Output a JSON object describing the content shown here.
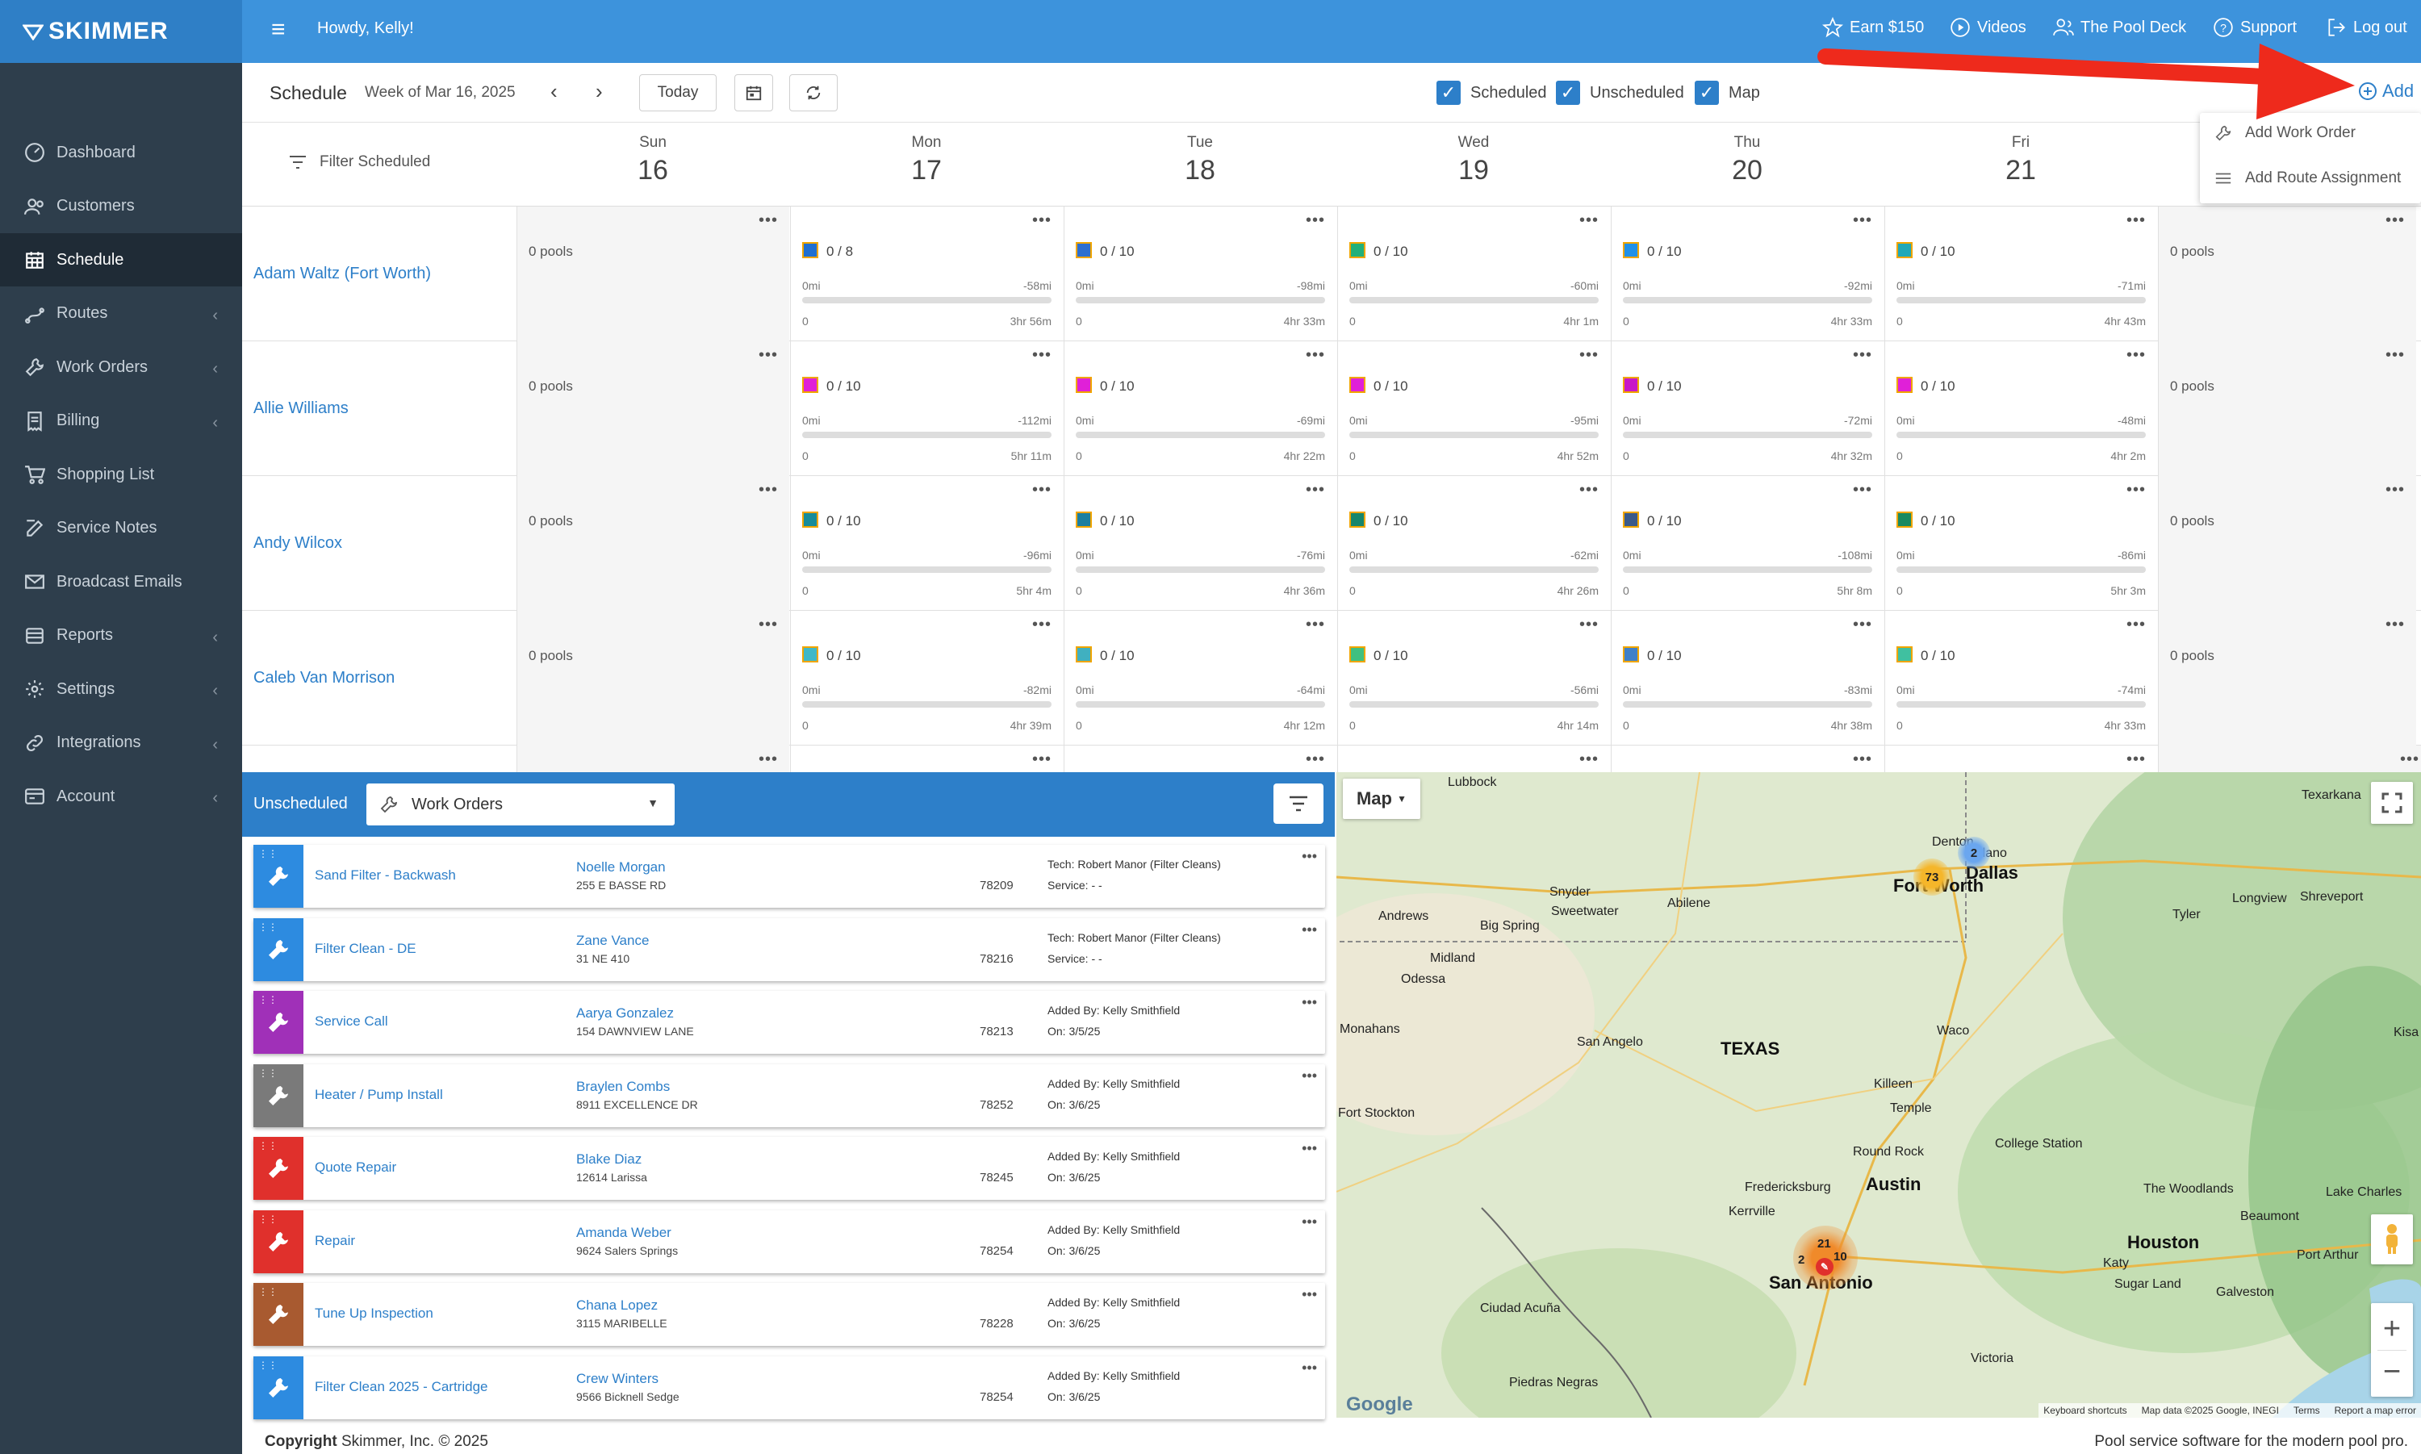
{
  "brand": {
    "name": "SKIMMER",
    "accent": "#3d93dc",
    "sidebar_bg": "#2e3e4c"
  },
  "topbar": {
    "greeting": "Howdy, Kelly!",
    "links": [
      {
        "label": "Earn $150",
        "icon": "star-icon"
      },
      {
        "label": "Videos",
        "icon": "play-icon"
      },
      {
        "label": "The Pool Deck",
        "icon": "people-icon"
      },
      {
        "label": "Support",
        "icon": "help-icon"
      },
      {
        "label": "Log out",
        "icon": "logout-icon"
      }
    ]
  },
  "sidebar": {
    "items": [
      {
        "label": "Dashboard",
        "icon": "dashboard-icon",
        "chevron": false
      },
      {
        "label": "Customers",
        "icon": "customers-icon",
        "chevron": false
      },
      {
        "label": "Schedule",
        "icon": "calendar-icon",
        "chevron": false,
        "active": true
      },
      {
        "label": "Routes",
        "icon": "routes-icon",
        "chevron": true
      },
      {
        "label": "Work Orders",
        "icon": "wrench-icon",
        "chevron": true
      },
      {
        "label": "Billing",
        "icon": "invoice-icon",
        "chevron": true
      },
      {
        "label": "Shopping List",
        "icon": "cart-icon",
        "chevron": false
      },
      {
        "label": "Service Notes",
        "icon": "notes-icon",
        "chevron": false
      },
      {
        "label": "Broadcast Emails",
        "icon": "email-icon",
        "chevron": false
      },
      {
        "label": "Reports",
        "icon": "reports-icon",
        "chevron": true
      },
      {
        "label": "Settings",
        "icon": "gear-icon",
        "chevron": true
      },
      {
        "label": "Integrations",
        "icon": "link-icon",
        "chevron": true
      },
      {
        "label": "Account",
        "icon": "account-icon",
        "chevron": true
      }
    ]
  },
  "schedule": {
    "title": "Schedule",
    "week": "Week of Mar 16, 2025",
    "today_label": "Today",
    "toggles": [
      {
        "label": "Scheduled",
        "checked": true
      },
      {
        "label": "Unscheduled",
        "checked": true
      },
      {
        "label": "Map",
        "checked": true
      }
    ],
    "add_label": "Add",
    "filter_label": "Filter Scheduled",
    "days": [
      {
        "name": "Sun",
        "date": "16"
      },
      {
        "name": "Mon",
        "date": "17"
      },
      {
        "name": "Tue",
        "date": "18"
      },
      {
        "name": "Wed",
        "date": "19"
      },
      {
        "name": "Thu",
        "date": "20"
      },
      {
        "name": "Fri",
        "date": "21"
      },
      {
        "name": "",
        "date": ""
      }
    ],
    "technicians": [
      {
        "name": "Adam Waltz (Fort Worth)",
        "sun": "0 pools",
        "sat": "0 pools",
        "days": [
          {
            "count": "0 / 8",
            "color": "#1f6fd1",
            "mi0": "0mi",
            "mi": "-58mi",
            "s": "0",
            "time": "3hr 56m"
          },
          {
            "count": "0 / 10",
            "color": "#2e6fd0",
            "mi0": "0mi",
            "mi": "-98mi",
            "s": "0",
            "time": "4hr 33m"
          },
          {
            "count": "0 / 10",
            "color": "#22b07a",
            "mi0": "0mi",
            "mi": "-60mi",
            "s": "0",
            "time": "4hr 1m"
          },
          {
            "count": "0 / 10",
            "color": "#2090e8",
            "mi0": "0mi",
            "mi": "-92mi",
            "s": "0",
            "time": "4hr 33m"
          },
          {
            "count": "0 / 10",
            "color": "#20a8b8",
            "mi0": "0mi",
            "mi": "-71mi",
            "s": "0",
            "time": "4hr 43m"
          }
        ]
      },
      {
        "name": "Allie Williams",
        "sun": "0 pools",
        "sat": "0 pools",
        "days": [
          {
            "count": "0 / 10",
            "color": "#e020d8",
            "mi0": "0mi",
            "mi": "-112mi",
            "s": "0",
            "time": "5hr 11m"
          },
          {
            "count": "0 / 10",
            "color": "#e020d8",
            "mi0": "0mi",
            "mi": "-69mi",
            "s": "0",
            "time": "4hr 22m"
          },
          {
            "count": "0 / 10",
            "color": "#e020d8",
            "mi0": "0mi",
            "mi": "-95mi",
            "s": "0",
            "time": "4hr 52m"
          },
          {
            "count": "0 / 10",
            "color": "#c818c8",
            "mi0": "0mi",
            "mi": "-72mi",
            "s": "0",
            "time": "4hr 32m"
          },
          {
            "count": "0 / 10",
            "color": "#e020d8",
            "mi0": "0mi",
            "mi": "-48mi",
            "s": "0",
            "time": "4hr 2m"
          }
        ]
      },
      {
        "name": "Andy Wilcox",
        "sun": "0 pools",
        "sat": "0 pools",
        "days": [
          {
            "count": "0 / 10",
            "color": "#168c9a",
            "mi0": "0mi",
            "mi": "-96mi",
            "s": "0",
            "time": "5hr 4m"
          },
          {
            "count": "0 / 10",
            "color": "#1c7fa0",
            "mi0": "0mi",
            "mi": "-76mi",
            "s": "0",
            "time": "4hr 36m"
          },
          {
            "count": "0 / 10",
            "color": "#17866c",
            "mi0": "0mi",
            "mi": "-62mi",
            "s": "0",
            "time": "4hr 26m"
          },
          {
            "count": "0 / 10",
            "color": "#3a5a8a",
            "mi0": "0mi",
            "mi": "-108mi",
            "s": "0",
            "time": "5hr 8m"
          },
          {
            "count": "0 / 10",
            "color": "#1a8a60",
            "mi0": "0mi",
            "mi": "-86mi",
            "s": "0",
            "time": "5hr 3m"
          }
        ]
      },
      {
        "name": "Caleb Van Morrison",
        "sun": "0 pools",
        "sat": "0 pools",
        "days": [
          {
            "count": "0 / 10",
            "color": "#40b8c8",
            "mi0": "0mi",
            "mi": "-82mi",
            "s": "0",
            "time": "4hr 39m"
          },
          {
            "count": "0 / 10",
            "color": "#40b0c0",
            "mi0": "0mi",
            "mi": "-64mi",
            "s": "0",
            "time": "4hr 12m"
          },
          {
            "count": "0 / 10",
            "color": "#40c080",
            "mi0": "0mi",
            "mi": "-56mi",
            "s": "0",
            "time": "4hr 14m"
          },
          {
            "count": "0 / 10",
            "color": "#4080c8",
            "mi0": "0mi",
            "mi": "-83mi",
            "s": "0",
            "time": "4hr 38m"
          },
          {
            "count": "0 / 10",
            "color": "#40c0a0",
            "mi0": "0mi",
            "mi": "-74mi",
            "s": "0",
            "time": "4hr 33m"
          }
        ]
      }
    ]
  },
  "dropdown": {
    "items": [
      "Add Work Order",
      "Add Route Assignment"
    ]
  },
  "unscheduled": {
    "label": "Unscheduled",
    "select_value": "Work Orders",
    "orders": [
      {
        "title": "Sand Filter - Backwash",
        "customer": "Noelle Morgan",
        "address": "255 E BASSE RD",
        "zip": "78209",
        "info1": "Tech: Robert Manor (Filter Cleans)",
        "info2": "Service: - -",
        "color": "#2d8be0"
      },
      {
        "title": "Filter Clean - DE",
        "customer": "Zane Vance",
        "address": "31 NE 410",
        "zip": "78216",
        "info1": "Tech: Robert Manor (Filter Cleans)",
        "info2": "Service: - -",
        "color": "#2d8be0"
      },
      {
        "title": "Service Call",
        "customer": "Aarya Gonzalez",
        "address": "154 DAWNVIEW LANE",
        "zip": "78213",
        "info1": "Added By: Kelly Smithfield",
        "info2": "On: 3/5/25",
        "color": "#a030b8"
      },
      {
        "title": "Heater / Pump Install",
        "customer": "Braylen Combs",
        "address": "8911 EXCELLENCE DR",
        "zip": "78252",
        "info1": "Added By: Kelly Smithfield",
        "info2": "On: 3/6/25",
        "color": "#7a7a7a"
      },
      {
        "title": "Quote Repair",
        "customer": "Blake Diaz",
        "address": "12614 Larissa",
        "zip": "78245",
        "info1": "Added By: Kelly Smithfield",
        "info2": "On: 3/6/25",
        "color": "#e0302c"
      },
      {
        "title": "Repair",
        "customer": "Amanda Weber",
        "address": "9624 Salers Springs",
        "zip": "78254",
        "info1": "Added By: Kelly Smithfield",
        "info2": "On: 3/6/25",
        "color": "#e0302c"
      },
      {
        "title": "Tune Up Inspection",
        "customer": "Chana Lopez",
        "address": "3115 MARIBELLE",
        "zip": "78228",
        "info1": "Added By: Kelly Smithfield",
        "info2": "On: 3/6/25",
        "color": "#a85a30"
      },
      {
        "title": "Filter Clean 2025 - Cartridge",
        "customer": "Crew Winters",
        "address": "9566 Bicknell Sedge",
        "zip": "78254",
        "info1": "Added By: Kelly Smithfield",
        "info2": "On: 3/6/25",
        "color": "#2d8be0"
      }
    ]
  },
  "map": {
    "label": "Map",
    "cities": [
      "Lubbock",
      "Texarkana",
      "Denton",
      "Plano",
      "Dallas",
      "Fort Worth",
      "Snyder",
      "Abilene",
      "Sweetwater",
      "Andrews",
      "Big Spring",
      "Midland",
      "Odessa",
      "Tyler",
      "Longview",
      "Shreveport",
      "Monahans",
      "San Angelo",
      "TEXAS",
      "Waco",
      "Killeen",
      "Temple",
      "Round Rock",
      "Austin",
      "College Station",
      "Fredericksburg",
      "Kerrville",
      "The Woodlands",
      "Houston",
      "Beaumont",
      "Lake Charles",
      "San Antonio",
      "Katy",
      "Sugar Land",
      "Galveston",
      "Port Arthur",
      "Ciudad Acuña",
      "Victoria",
      "Piedras Negras",
      "Fort Stockton",
      "Kisa Nation"
    ],
    "cluster_labels": [
      "73",
      "2",
      "21",
      "2",
      "10"
    ],
    "attribution": [
      "Keyboard shortcuts",
      "Map data ©2025 Google, INEGI",
      "Terms",
      "Report a map error"
    ],
    "google": "Google"
  },
  "footer": {
    "copyright_bold": "Copyright",
    "copyright": " Skimmer, Inc. © 2025",
    "tagline": "Pool service software for the modern pool pro."
  }
}
